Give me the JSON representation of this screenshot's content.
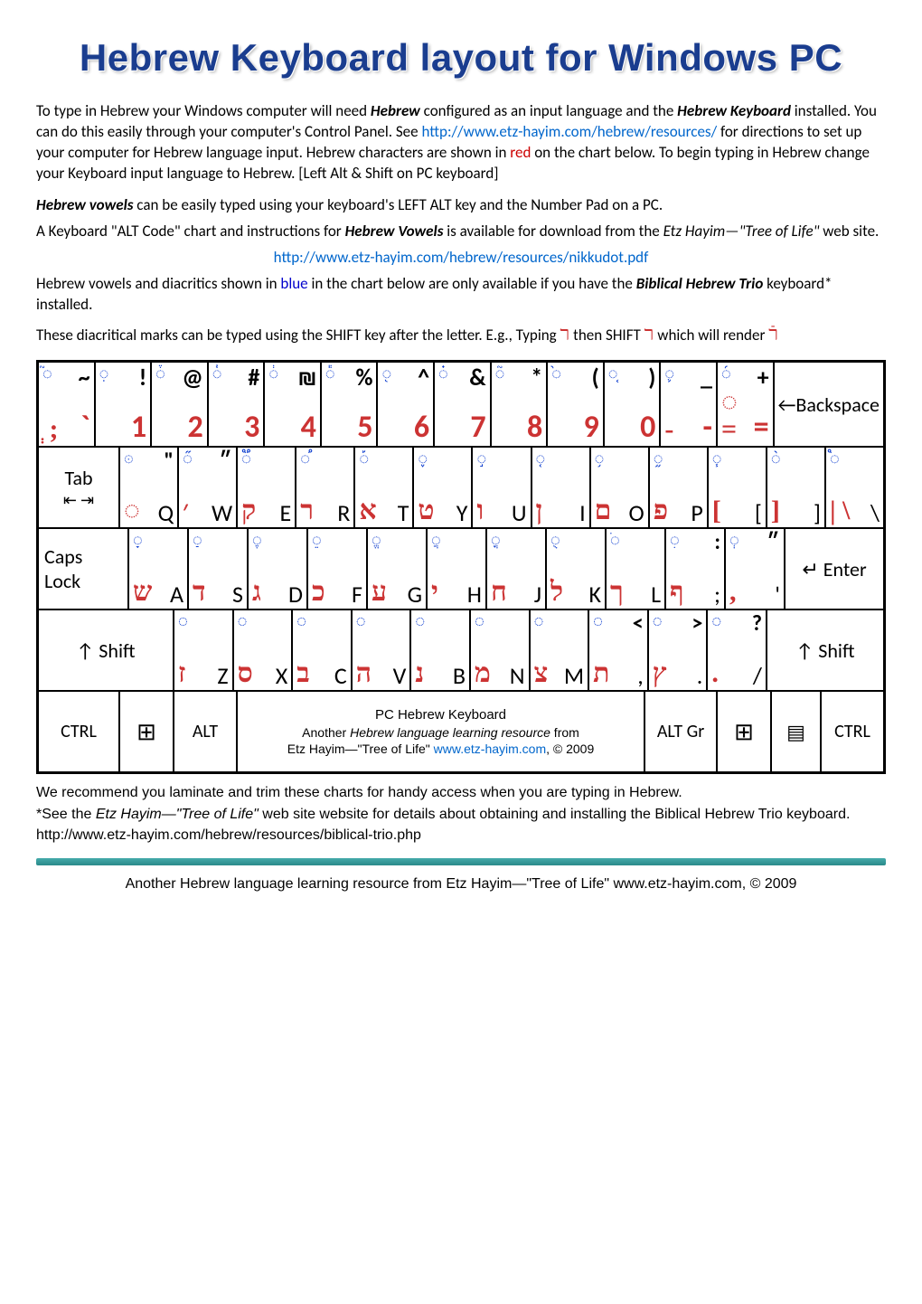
{
  "title": "Hebrew Keyboard layout for Windows PC",
  "intro_parts": {
    "p1a": "To type in Hebrew your Windows computer will need ",
    "p1b": "Hebrew",
    "p1c": " configured as an input language and the ",
    "p1d": "Hebrew Keyboard",
    "p1e": " installed. You can do this easily through your computer's Control Panel. See ",
    "p1link": "http://www.etz-hayim.com/hebrew/resources/",
    "p1f": " for directions to set up your computer for Hebrew language input. Hebrew characters are shown in ",
    "p1red": "red",
    "p1g": " on the chart below. To begin typing in Hebrew change your Keyboard input language to Hebrew. [Left Alt & Shift on PC keyboard]"
  },
  "para2": {
    "a": "Hebrew vowels",
    "b": " can be easily typed using your keyboard's  LEFT ALT key and the Number Pad on a PC."
  },
  "para3": {
    "a": "A Keyboard \"ALT Code\" chart and instructions for ",
    "b": "Hebrew Vowels",
    "c": " is available for download from the ",
    "d": "Etz Hayim—\"Tree of Life\"",
    "e": " web site."
  },
  "para3_link": "http://www.etz-hayim.com/hebrew/resources/nikkudot.pdf",
  "para4": {
    "a": " Hebrew vowels and diacritics shown in ",
    "blue": "blue",
    "b": " in the chart below are only available if you have the ",
    "c": "Biblical Hebrew Trio",
    "d": " keyboard* installed."
  },
  "para5": {
    "a": "These diacritical marks can be typed using the SHIFT key after the letter. E.g., Typing ",
    "h1": "ר",
    "b": " then SHIFT ",
    "h2": "ר",
    "c": " which will render ",
    "h3": "רֿ"
  },
  "row1": [
    {
      "dia": "◌֮",
      "sym": "~",
      "heb": "",
      "lat": "`",
      "botheb": "ְ ;"
    },
    {
      "dia": "◌ֽ",
      "sym": "!",
      "heb": "",
      "lat": "1"
    },
    {
      "dia": "◌֒",
      "sym": "@",
      "heb": "",
      "lat": "2"
    },
    {
      "dia": "◌֓",
      "sym": "#",
      "heb": "",
      "lat": "3"
    },
    {
      "dia": "◌֔",
      "sym": "₪",
      "heb": "",
      "lat": "4"
    },
    {
      "dia": "◌֕",
      "sym": "%",
      "heb": "",
      "lat": "5"
    },
    {
      "dia": "◌֖",
      "sym": "^",
      "heb": "",
      "lat": "6"
    },
    {
      "dia": "◌֗",
      "sym": "&",
      "heb": "",
      "lat": "7"
    },
    {
      "dia": "◌֘",
      "sym": "*",
      "heb": "",
      "lat": "8"
    },
    {
      "dia": "◌֙",
      "sym": "(",
      "heb": "",
      "lat": "9"
    },
    {
      "dia": "◌֚",
      "sym": ")",
      "heb": "",
      "lat": "0"
    },
    {
      "dia": "◌֛",
      "sym": "_",
      "heb": "",
      "lat": "-",
      "botheb": "-"
    },
    {
      "dia": "◌֜",
      "sym": "+",
      "heb": "",
      "lat": "=",
      "botheb": "◌ ="
    }
  ],
  "backspace": "←Backspace",
  "row2": [
    {
      "dia": "◌ּ",
      "sym": "\"",
      "heb": "◌",
      "lat": "Q"
    },
    {
      "dia": "◌֞",
      "sym": "״",
      "heb": "׳",
      "lat": "W"
    },
    {
      "dia": "◌֟",
      "sym": "",
      "heb": "ק",
      "lat": "E"
    },
    {
      "dia": "◌֠",
      "sym": "",
      "heb": "ר",
      "lat": "R"
    },
    {
      "dia": "◌֡",
      "sym": "",
      "heb": "א",
      "lat": "T"
    },
    {
      "dia": "◌֢",
      "sym": "",
      "heb": "ט",
      "lat": "Y"
    },
    {
      "dia": "◌֣",
      "sym": "",
      "heb": "ו",
      "lat": "U"
    },
    {
      "dia": "◌֤",
      "sym": "",
      "heb": "ן",
      "lat": "I"
    },
    {
      "dia": "◌֥",
      "sym": "",
      "heb": "ם",
      "lat": "O"
    },
    {
      "dia": "◌֦",
      "sym": "",
      "heb": "פ",
      "lat": "P"
    },
    {
      "dia": "◌֧",
      "sym": "",
      "heb": "",
      "lat": "[",
      "botheb": "["
    },
    {
      "dia": "◌֨",
      "sym": "",
      "heb": "",
      "lat": "]",
      "botheb": "]"
    },
    {
      "dia": "◌֩",
      "sym": "",
      "heb": "",
      "lat": "\\",
      "botheb": "|  \\"
    }
  ],
  "tab": "Tab",
  "tab_arrows": "⇤  ⇥",
  "row3": [
    {
      "dia": "◌ָ",
      "sym": "",
      "heb": "ש",
      "lat": "A"
    },
    {
      "dia": "◌ַ",
      "sym": "",
      "heb": "ד",
      "lat": "S"
    },
    {
      "dia": "◌ֶ",
      "sym": "",
      "heb": "ג",
      "lat": "D"
    },
    {
      "dia": "◌ֵ",
      "sym": "",
      "heb": "כ",
      "lat": "F"
    },
    {
      "dia": "◌ֱ",
      "sym": "",
      "heb": "ע",
      "lat": "G"
    },
    {
      "dia": "◌ֲ",
      "sym": "",
      "heb": "י",
      "lat": "H"
    },
    {
      "dia": "◌ֳ",
      "sym": "",
      "heb": "ח",
      "lat": "J"
    },
    {
      "dia": "◌ֻ",
      "sym": "",
      "heb": "ל",
      "lat": "K"
    },
    {
      "dia": "◌ֹ",
      "sym": "",
      "heb": "ך",
      "lat": "L"
    },
    {
      "dia": "◌ִ",
      "sym": ":",
      "heb": "ף",
      "lat": ";"
    },
    {
      "dia": "◌ְ",
      "sym": "״",
      "heb": "׳",
      "lat": "'",
      "botheb": ","
    }
  ],
  "caps": "Caps Lock",
  "enter": "↵ Enter",
  "row4": [
    {
      "dia": "◌",
      "sym": "",
      "heb": "ז",
      "lat": "Z",
      "botdia": "."
    },
    {
      "dia": "◌",
      "sym": "",
      "heb": "ס",
      "lat": "X",
      "botdia": "֫"
    },
    {
      "dia": "◌",
      "sym": "",
      "heb": "ב",
      "lat": "C",
      "botdia": "֬"
    },
    {
      "dia": "◌",
      "sym": "",
      "heb": "ה",
      "lat": "V",
      "botdia": "֭"
    },
    {
      "dia": "◌",
      "sym": "",
      "heb": "נ",
      "lat": "B",
      "botdia": "֮"
    },
    {
      "dia": "◌",
      "sym": "",
      "heb": "מ",
      "lat": "N",
      "botdia": "֯"
    },
    {
      "dia": "◌",
      "sym": "",
      "heb": "צ",
      "lat": "M",
      "botdia": "ֽ"
    },
    {
      "dia": "◌",
      "sym": "<",
      "heb": "ת",
      "lat": ",",
      "botdia": "ֿ"
    },
    {
      "dia": "◌",
      "sym": ">",
      "heb": "ץ",
      "lat": ".",
      "botdia": "ׁ"
    },
    {
      "dia": "◌",
      "sym": "?",
      "heb": ".",
      "lat": "/",
      "botdia": "ׂ"
    }
  ],
  "shift": "↑ Shift",
  "row5": {
    "ctrl": "CTRL",
    "win": "⊞",
    "alt": "ALT",
    "space1": "PC Hebrew Keyboard",
    "space2a": "Another ",
    "space2b": "Hebrew language learning resource",
    "space2c": " from",
    "space3a": "Etz Hayim—\"Tree of Life\"    ",
    "space3b": "www.etz-hayim.com",
    "space3c": ", © 2009",
    "altgr": "ALT Gr",
    "menu": "▤"
  },
  "foot": {
    "f1": "We recommend you laminate and trim these charts for handy access when you are typing in Hebrew.",
    "f2a": "*See the ",
    "f2b": "Etz Hayim—\"Tree of Life\"",
    "f2c": " web site website for details about obtaining and installing the Biblical Hebrew Trio keyboard.",
    "f3": " http://www.etz-hayim.com/hebrew/resources/biblical-trio.php"
  },
  "footer": {
    "a": "Another Hebrew language learning resource from Etz Hayim—\"Tree of Life\"    www.etz-hayim.com, © 2009"
  }
}
